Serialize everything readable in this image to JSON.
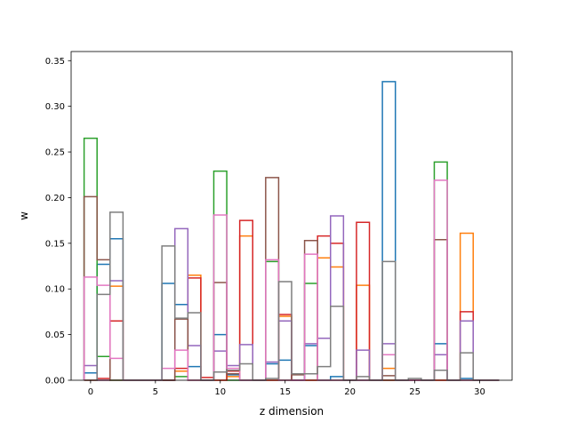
{
  "chart_data": {
    "type": "histogram-step",
    "xlabel": "z dimension",
    "ylabel": "w",
    "xlim": [
      -1.5,
      32.5
    ],
    "ylim": [
      0,
      0.36
    ],
    "xticks": [
      0,
      5,
      10,
      15,
      20,
      25,
      30
    ],
    "xtick_labels": [
      "0",
      "5",
      "10",
      "15",
      "20",
      "25",
      "30"
    ],
    "yticks": [
      0.0,
      0.05,
      0.1,
      0.15,
      0.2,
      0.25,
      0.3,
      0.35
    ],
    "ytick_labels": [
      "0.00",
      "0.05",
      "0.10",
      "0.15",
      "0.20",
      "0.25",
      "0.30",
      "0.35"
    ],
    "grid": false,
    "legend": "none",
    "bin_edges": [
      -0.5,
      0.5,
      1.5,
      2.5,
      3.5,
      4.5,
      5.5,
      6.5,
      7.5,
      8.5,
      9.5,
      10.5,
      11.5,
      12.5,
      13.5,
      14.5,
      15.5,
      16.5,
      17.5,
      18.5,
      19.5,
      20.5,
      21.5,
      22.5,
      23.5,
      24.5,
      25.5,
      26.5,
      27.5,
      28.5,
      29.5,
      30.5,
      31.5
    ],
    "series": [
      {
        "color": "#1f77b4",
        "values": [
          0.008,
          0.127,
          0.155,
          0,
          0,
          0,
          0.106,
          0.083,
          0.015,
          0,
          0.05,
          0.006,
          0,
          0,
          0.018,
          0.022,
          0,
          0.038,
          0,
          0.004,
          0,
          0,
          0,
          0.327,
          0,
          0,
          0,
          0.04,
          0,
          0.002,
          0,
          0
        ]
      },
      {
        "color": "#ff7f0e",
        "values": [
          0,
          0,
          0.103,
          0,
          0,
          0,
          0,
          0.01,
          0.115,
          0,
          0,
          0.004,
          0.158,
          0,
          0,
          0.07,
          0,
          0,
          0.134,
          0.124,
          0,
          0.104,
          0,
          0.013,
          0,
          0,
          0,
          0,
          0,
          0.161,
          0,
          0
        ]
      },
      {
        "color": "#2ca02c",
        "values": [
          0.265,
          0.026,
          0,
          0,
          0,
          0,
          0,
          0.004,
          0,
          0,
          0.229,
          0,
          0,
          0,
          0.13,
          0,
          0,
          0.106,
          0,
          0,
          0,
          0,
          0,
          0,
          0,
          0,
          0,
          0.239,
          0,
          0,
          0,
          0
        ]
      },
      {
        "color": "#d62728",
        "values": [
          0,
          0.002,
          0.065,
          0,
          0,
          0,
          0,
          0.013,
          0.112,
          0.003,
          0,
          0.01,
          0.175,
          0,
          0,
          0.072,
          0,
          0,
          0.158,
          0.15,
          0,
          0.173,
          0,
          0,
          0,
          0,
          0,
          0,
          0,
          0.075,
          0,
          0
        ]
      },
      {
        "color": "#9467bd",
        "values": [
          0.016,
          0,
          0.109,
          0,
          0,
          0,
          0,
          0.166,
          0.038,
          0,
          0.032,
          0.016,
          0.039,
          0,
          0.02,
          0.065,
          0,
          0.04,
          0.046,
          0.18,
          0,
          0.033,
          0,
          0.04,
          0,
          0,
          0,
          0.028,
          0,
          0.065,
          0,
          0
        ]
      },
      {
        "color": "#8c564b",
        "values": [
          0.201,
          0.132,
          0,
          0,
          0,
          0,
          0,
          0.067,
          0,
          0,
          0.107,
          0.007,
          0,
          0,
          0.222,
          0,
          0.006,
          0.153,
          0,
          0,
          0,
          0,
          0,
          0.005,
          0,
          0,
          0,
          0.154,
          0,
          0,
          0,
          0
        ]
      },
      {
        "color": "#e377c2",
        "values": [
          0.113,
          0.104,
          0.024,
          0,
          0,
          0,
          0.013,
          0.033,
          0,
          0,
          0.181,
          0.013,
          0,
          0,
          0.132,
          0,
          0,
          0.138,
          0,
          0,
          0,
          0,
          0,
          0.028,
          0,
          0,
          0,
          0.219,
          0,
          0,
          0,
          0
        ]
      },
      {
        "color": "#7f7f7f",
        "values": [
          0,
          0.094,
          0.184,
          0,
          0,
          0,
          0.147,
          0.068,
          0.074,
          0,
          0.009,
          0.011,
          0.018,
          0,
          0.002,
          0.108,
          0.007,
          0.007,
          0.015,
          0.081,
          0,
          0.004,
          0,
          0.13,
          0,
          0.002,
          0,
          0.011,
          0,
          0.03,
          0,
          0
        ]
      }
    ]
  }
}
